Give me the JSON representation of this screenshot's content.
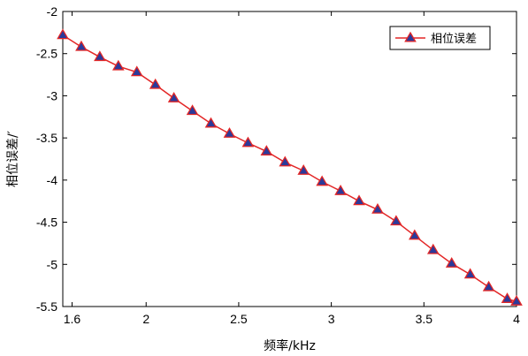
{
  "chart_data": {
    "type": "line",
    "xlabel": "频率/kHz",
    "ylabel": "相位误差/′",
    "xlim": [
      1.55,
      4.0
    ],
    "ylim": [
      -5.5,
      -2.0
    ],
    "xticks": [
      1.6,
      2,
      2.5,
      3,
      3.5,
      4
    ],
    "yticks": [
      -2,
      -2.5,
      -3,
      -3.5,
      -4,
      -4.5,
      -5,
      -5.5
    ],
    "xtick_labels": [
      "1.6",
      "2",
      "2.5",
      "3",
      "3.5",
      "4"
    ],
    "ytick_labels": [
      "-2",
      "-2.5",
      "-3",
      "-3.5",
      "-4",
      "-4.5",
      "-5",
      "-5.5"
    ],
    "grid": false,
    "legend_position": "top-right",
    "series": [
      {
        "name": "相位误差",
        "color": "#e32626",
        "marker_fill": "#2b3a9a",
        "marker": "triangle",
        "x": [
          1.55,
          1.65,
          1.75,
          1.85,
          1.95,
          2.05,
          2.15,
          2.25,
          2.35,
          2.45,
          2.55,
          2.65,
          2.75,
          2.85,
          2.95,
          3.05,
          3.15,
          3.25,
          3.35,
          3.45,
          3.55,
          3.65,
          3.75,
          3.85,
          3.95,
          4.0
        ],
        "y": [
          -2.28,
          -2.42,
          -2.54,
          -2.65,
          -2.72,
          -2.87,
          -3.03,
          -3.18,
          -3.33,
          -3.45,
          -3.56,
          -3.66,
          -3.79,
          -3.89,
          -4.02,
          -4.13,
          -4.25,
          -4.35,
          -4.49,
          -4.66,
          -4.83,
          -4.99,
          -5.12,
          -5.27,
          -5.41,
          -5.44
        ]
      }
    ]
  }
}
